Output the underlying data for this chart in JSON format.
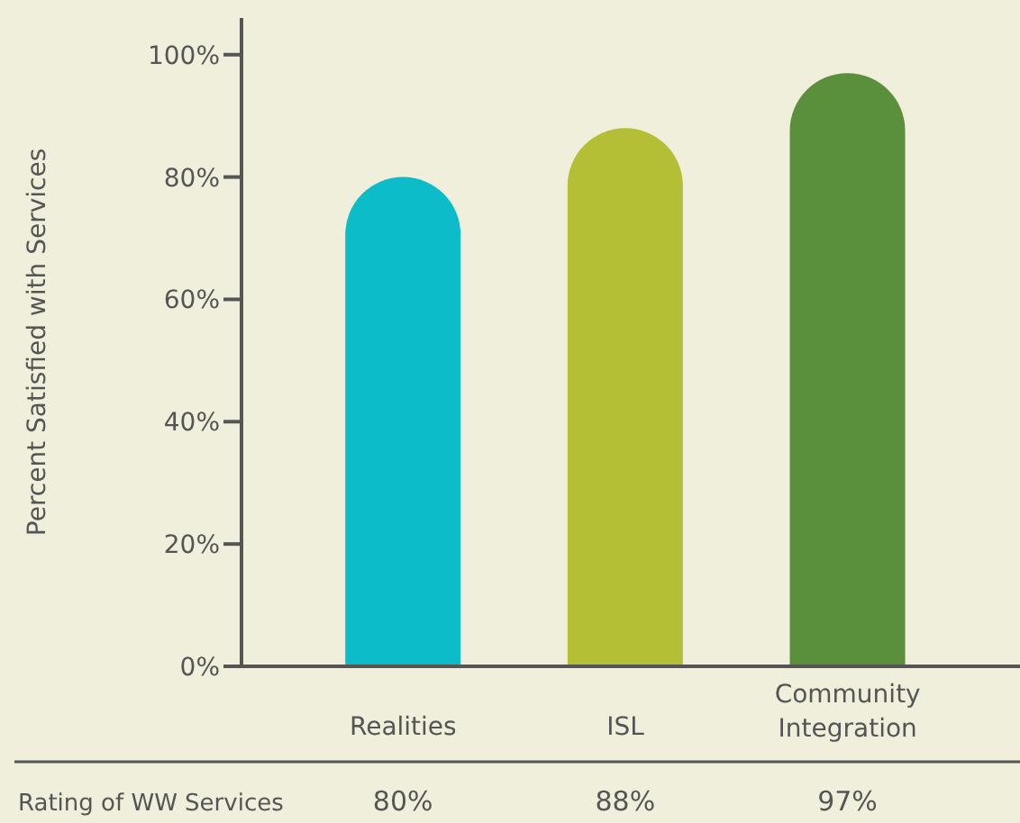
{
  "chart_data": {
    "type": "bar",
    "ylabel": "Percent Satisfied with Services",
    "categories": [
      "Realities",
      "ISL",
      "Community\nIntegration"
    ],
    "values": [
      80,
      88,
      97
    ],
    "colors": [
      "#0cbcc9",
      "#b4bf35",
      "#5a8f3c"
    ],
    "value_labels": [
      "80%",
      "88%",
      "97%"
    ],
    "annotations": [
      "Rating of WW Services"
    ],
    "ylim": [
      0,
      106
    ],
    "yticks": [
      {
        "value": 0,
        "label": "0%"
      },
      {
        "value": 20,
        "label": "20%"
      },
      {
        "value": 40,
        "label": "40%"
      },
      {
        "value": 60,
        "label": "60%"
      },
      {
        "value": 80,
        "label": "80%"
      },
      {
        "value": 100,
        "label": "100%"
      }
    ],
    "grid": false,
    "legend": false
  }
}
